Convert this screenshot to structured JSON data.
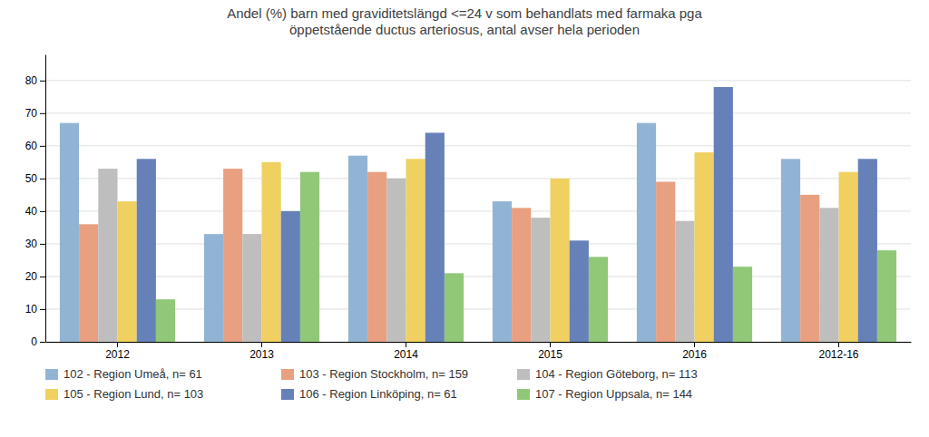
{
  "chart_data": {
    "type": "bar",
    "title": "Andel (%) barn med graviditetslängd <=24 v som behandlats med farmaka pga\nöppetstående ductus arteriosus, antal avser hela perioden",
    "categories": [
      "2012",
      "2013",
      "2014",
      "2015",
      "2016",
      "2012-16"
    ],
    "series": [
      {
        "name": "102 - Region Umeå, n= 61",
        "color": "#92B4D4",
        "values": [
          67,
          33,
          57,
          43,
          67,
          56
        ]
      },
      {
        "name": "103 - Region Stockholm, n= 159",
        "color": "#E8A080",
        "values": [
          36,
          53,
          52,
          41,
          49,
          45
        ]
      },
      {
        "name": "104 - Region Göteborg, n= 113",
        "color": "#BEBEBE",
        "values": [
          53,
          33,
          50,
          38,
          37,
          41
        ]
      },
      {
        "name": "105 - Region Lund, n= 103",
        "color": "#F0D060",
        "values": [
          43,
          55,
          56,
          50,
          58,
          52
        ]
      },
      {
        "name": "106 - Region Linköping, n= 61",
        "color": "#6680B8",
        "values": [
          56,
          40,
          64,
          31,
          78,
          56
        ]
      },
      {
        "name": "107 - Region Uppsala, n= 144",
        "color": "#90C878",
        "values": [
          13,
          52,
          21,
          26,
          23,
          28
        ]
      }
    ],
    "ylim": [
      0,
      88
    ],
    "yticks": [
      0,
      10,
      20,
      30,
      40,
      50,
      60,
      70,
      80
    ],
    "grid": true,
    "legend": "bottom"
  }
}
